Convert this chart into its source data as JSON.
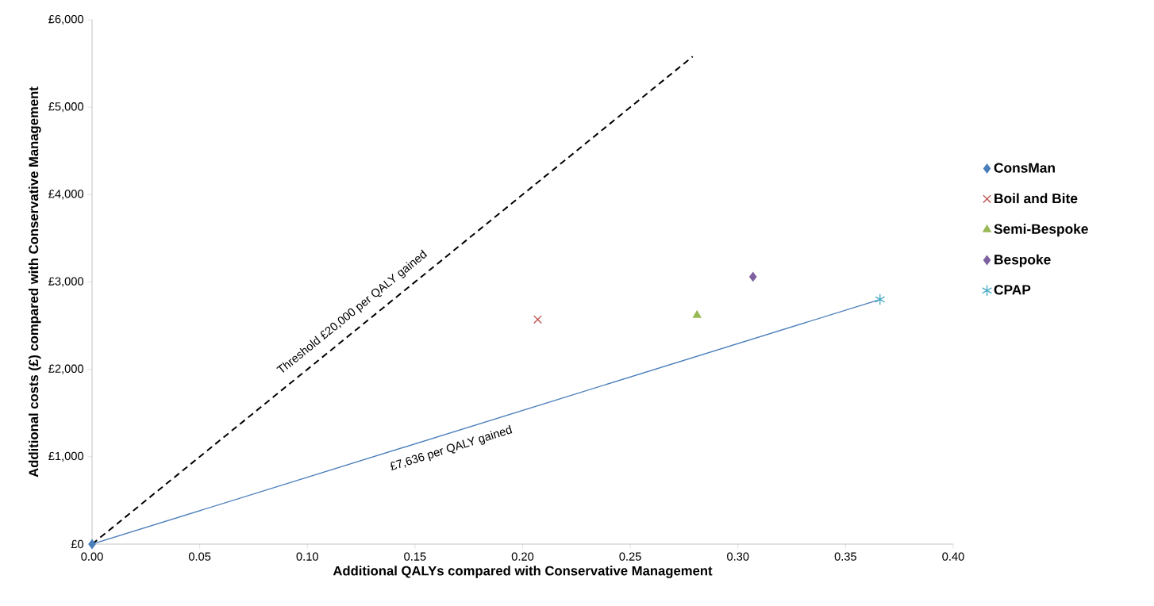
{
  "chart_data": {
    "type": "scatter",
    "xlabel": "Additional QALYs compared with Conservative Management",
    "ylabel": "Additional costs (£) compared with Conservative Management",
    "xlim": [
      0,
      0.4
    ],
    "ylim": [
      0,
      6000
    ],
    "xticks": [
      {
        "value": 0,
        "label": "0.00"
      },
      {
        "value": 0.05,
        "label": "0.05"
      },
      {
        "value": 0.1,
        "label": "0.10"
      },
      {
        "value": 0.15,
        "label": "0.15"
      },
      {
        "value": 0.2,
        "label": "0.20"
      },
      {
        "value": 0.25,
        "label": "0.25"
      },
      {
        "value": 0.3,
        "label": "0.30"
      },
      {
        "value": 0.35,
        "label": "0.35"
      },
      {
        "value": 0.4,
        "label": "0.40"
      }
    ],
    "yticks": [
      {
        "value": 0,
        "label": "£0"
      },
      {
        "value": 1000,
        "label": "£1,000"
      },
      {
        "value": 2000,
        "label": "£2,000"
      },
      {
        "value": 3000,
        "label": "£3,000"
      },
      {
        "value": 4000,
        "label": "£4,000"
      },
      {
        "value": 5000,
        "label": "£5,000"
      },
      {
        "value": 6000,
        "label": "£6,000"
      }
    ],
    "grid": false,
    "legend": "right",
    "series": [
      {
        "name": "ConsMan",
        "color": "#4a7ebb",
        "marker": "diamond",
        "x": [
          0
        ],
        "values": [
          0
        ]
      },
      {
        "name": "Boil and Bite",
        "color": "#be4b48",
        "marker": "cross",
        "x": [
          0.207
        ],
        "values": [
          2570
        ]
      },
      {
        "name": "Semi-Bespoke",
        "color": "#98b954",
        "marker": "triangle",
        "x": [
          0.281
        ],
        "values": [
          2620
        ]
      },
      {
        "name": "Bespoke",
        "color": "#7d60a0",
        "marker": "diamond",
        "x": [
          0.307
        ],
        "values": [
          3060
        ]
      },
      {
        "name": "CPAP",
        "color": "#4bacc6",
        "x": [
          0.366
        ],
        "values": [
          2800
        ]
      },
      {
        "type": "line",
        "color": "#000000",
        "line_style": "dashed",
        "marker": "none",
        "x": [
          0,
          0.279
        ],
        "values": [
          0,
          5580
        ]
      },
      {
        "type": "line",
        "color": "#4a7ebb",
        "line_style": "solid",
        "marker": "none",
        "x": [
          0,
          0.366
        ],
        "values": [
          0,
          2800
        ]
      }
    ],
    "annotations": [
      "Threshold £20,000 per QALY gained",
      "£7,636 per QALY gained"
    ]
  }
}
